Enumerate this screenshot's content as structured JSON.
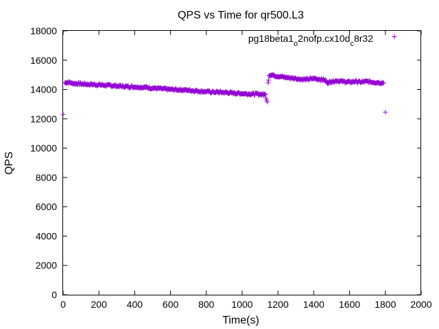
{
  "chart_data": {
    "type": "scatter",
    "title": "QPS vs Time for qr500.L3",
    "xlabel": "Time(s)",
    "ylabel": "QPS",
    "xlim": [
      0,
      2000
    ],
    "ylim": [
      0,
      18000
    ],
    "xticks": [
      "0",
      "200",
      "400",
      "600",
      "800",
      "1000",
      "1200",
      "1400",
      "1600",
      "1800",
      "2000"
    ],
    "yticks": [
      "0",
      "2000",
      "4000",
      "6000",
      "8000",
      "10000",
      "12000",
      "14000",
      "16000",
      "18000"
    ],
    "grid": false,
    "legend_position": "top-right",
    "series": [
      {
        "name_parts": [
          "pg18beta1",
          "o",
          "2nofp.cx10d",
          "c",
          "8r32"
        ],
        "color": "#9400D3",
        "marker": "plus",
        "x": [
          0,
          10,
          30,
          50,
          80,
          100,
          150,
          200,
          250,
          300,
          350,
          400,
          450,
          500,
          550,
          600,
          650,
          700,
          750,
          800,
          850,
          900,
          950,
          1000,
          1050,
          1100,
          1130,
          1140,
          1145,
          1150,
          1160,
          1180,
          1200,
          1230,
          1260,
          1300,
          1330,
          1360,
          1400,
          1430,
          1460,
          1480,
          1500,
          1530,
          1560,
          1600,
          1630,
          1660,
          1700,
          1730,
          1760,
          1790,
          1800
        ],
        "y": [
          12300,
          14450,
          14500,
          14420,
          14400,
          14380,
          14350,
          14320,
          14280,
          14240,
          14200,
          14180,
          14150,
          14100,
          14050,
          14000,
          13980,
          13950,
          13900,
          13850,
          13820,
          13800,
          13760,
          13720,
          13700,
          13680,
          13650,
          13150,
          14450,
          14950,
          15000,
          14950,
          14900,
          14850,
          14800,
          14750,
          14700,
          14680,
          14750,
          14700,
          14650,
          14450,
          14550,
          14600,
          14550,
          14500,
          14550,
          14500,
          14550,
          14500,
          14480,
          14450,
          12450
        ]
      }
    ],
    "legend_marker_point": {
      "x": 1850,
      "y": 17600
    }
  }
}
